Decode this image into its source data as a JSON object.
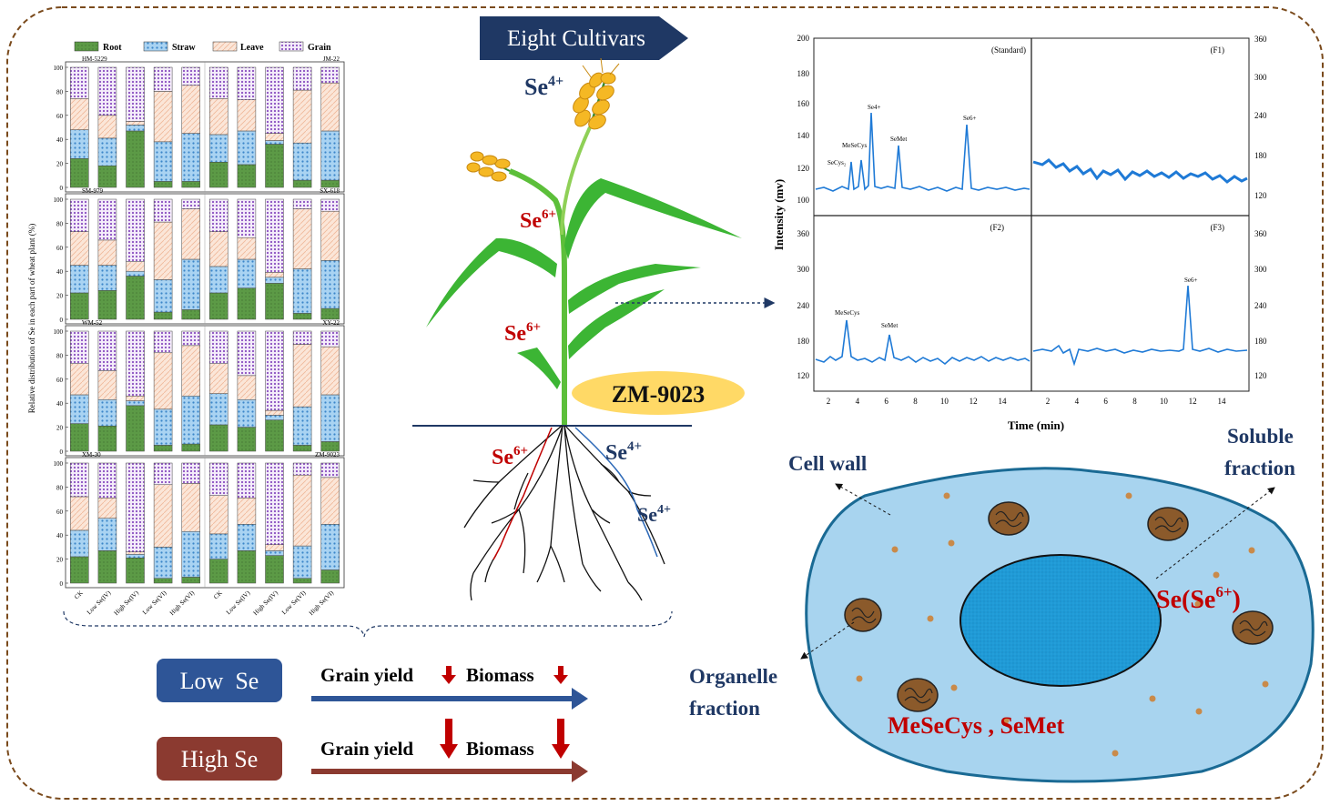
{
  "header_tag": "Eight Cultivars",
  "stacked_legend": [
    "Root",
    "Straw",
    "Leave",
    "Grain"
  ],
  "stacked_ylabel": "Relative distribution of Se in each part of wheat plant (%)",
  "stacked_yticks": [
    "0",
    "20",
    "40",
    "60",
    "80",
    "100"
  ],
  "stacked_xticks": [
    "CK",
    "Low Se(IV)",
    "High Se(IV)",
    "Low Se(VI)",
    "High Se(VI)",
    "CK",
    "Low Se(IV)",
    "High Se(IV)",
    "Low Se(VI)",
    "High Se(VI)"
  ],
  "plant": {
    "se4_top": "Se",
    "se4_top_sup": "4+",
    "se6_mid": "Se",
    "se6_mid_sup": "6+",
    "se6_low": "Se",
    "se6_low_sup": "6+",
    "se6_root": "Se",
    "se6_root_sup": "6+",
    "se4_root1": "Se",
    "se4_root1_sup": "4+",
    "se4_root2": "Se",
    "se4_root2_sup": "4+",
    "cultivar_label": "ZM-9023"
  },
  "hplc": {
    "ylabel": "Intensity (mv)",
    "xlabel": "Time (min)",
    "left_top_ticks": [
      "100",
      "120",
      "140",
      "160",
      "180",
      "200"
    ],
    "right_top_ticks": [
      "120",
      "180",
      "240",
      "300",
      "360"
    ],
    "bottom_ticks": [
      "120",
      "180",
      "240",
      "300",
      "360"
    ],
    "xticks": [
      "2",
      "4",
      "6",
      "8",
      "10",
      "12",
      "14"
    ],
    "panels": [
      "(Standard)",
      "(F1)",
      "(F2)",
      "(F3)"
    ],
    "peaks_standard": [
      "SeCys₂",
      "MeSeCys",
      "Se4+",
      "SeMet",
      "Se6+"
    ],
    "peaks_f2": [
      "MeSeCys",
      "SeMet"
    ],
    "peaks_f3": [
      "Se6+"
    ]
  },
  "cell": {
    "cell_wall": "Cell wall",
    "soluble1": "Soluble",
    "soluble2": "fraction",
    "organelle1": "Organelle",
    "organelle2": "fraction",
    "soluble_species": "Se(Se",
    "soluble_species_sup": "6+",
    "soluble_species_end": ")",
    "organelle_species": "MeSeCys , SeMet"
  },
  "effects": {
    "low_label": "Low  Se",
    "high_label": "High Se",
    "grain_yield": "Grain yield",
    "biomass": "Biomass"
  },
  "colors": {
    "root": "#4e8a3c",
    "straw": "#4d9ad6",
    "leave": "#f4cfb7",
    "grain": "#9b63c4",
    "navy": "#1f3864",
    "red": "#c00000",
    "low_se": "#2e5597",
    "high_se": "#8b3a30",
    "cell_fill": "#a8d4ef",
    "nucleus": "#1f9ad6",
    "hplc_line": "#1f7ad6"
  },
  "chart_data": {
    "type": "bar",
    "stacked": true,
    "ylabel": "Relative distribution of Se in each part of wheat plant (%)",
    "ylim": [
      0,
      100
    ],
    "categories": [
      "CK",
      "Low Se(IV)",
      "High Se(IV)",
      "Low Se(VI)",
      "High Se(VI)"
    ],
    "legend": [
      "Root",
      "Straw",
      "Leave",
      "Grain"
    ],
    "panels": [
      {
        "left": "HM-5229",
        "right": "JM-22",
        "left_bars": [
          [
            24,
            24,
            26,
            26
          ],
          [
            18,
            23,
            19,
            40
          ],
          [
            47,
            5,
            3,
            45
          ],
          [
            5,
            33,
            42,
            20
          ],
          [
            5,
            40,
            40,
            15
          ]
        ],
        "right_bars": [
          [
            21,
            23,
            30,
            26
          ],
          [
            19,
            28,
            26,
            27
          ],
          [
            36,
            3,
            6,
            55
          ],
          [
            6,
            31,
            44,
            19
          ],
          [
            6,
            41,
            40,
            13
          ]
        ]
      },
      {
        "left": "SM-979",
        "right": "SX-618",
        "left_bars": [
          [
            22,
            23,
            28,
            27
          ],
          [
            24,
            21,
            21,
            34
          ],
          [
            36,
            4,
            8,
            52
          ],
          [
            6,
            27,
            48,
            19
          ],
          [
            8,
            42,
            42,
            8
          ]
        ],
        "right_bars": [
          [
            22,
            22,
            29,
            27
          ],
          [
            26,
            24,
            18,
            32
          ],
          [
            30,
            5,
            4,
            61
          ],
          [
            5,
            37,
            50,
            8
          ],
          [
            9,
            40,
            41,
            10
          ]
        ]
      },
      {
        "left": "WM-52",
        "right": "XY-22",
        "left_bars": [
          [
            23,
            24,
            26,
            27
          ],
          [
            21,
            22,
            24,
            33
          ],
          [
            38,
            4,
            4,
            54
          ],
          [
            5,
            30,
            47,
            18
          ],
          [
            6,
            40,
            42,
            12
          ]
        ],
        "right_bars": [
          [
            22,
            26,
            25,
            27
          ],
          [
            20,
            23,
            20,
            37
          ],
          [
            26,
            4,
            4,
            66
          ],
          [
            5,
            32,
            52,
            11
          ],
          [
            8,
            39,
            40,
            13
          ]
        ]
      },
      {
        "left": "XM-30",
        "right": "ZM-9023",
        "left_bars": [
          [
            22,
            22,
            28,
            28
          ],
          [
            27,
            27,
            17,
            29
          ],
          [
            21,
            3,
            2,
            74
          ],
          [
            4,
            26,
            52,
            18
          ],
          [
            5,
            38,
            40,
            17
          ]
        ],
        "right_bars": [
          [
            20,
            21,
            32,
            27
          ],
          [
            27,
            22,
            22,
            29
          ],
          [
            23,
            4,
            5,
            68
          ],
          [
            4,
            27,
            59,
            10
          ],
          [
            11,
            38,
            39,
            12
          ]
        ]
      }
    ]
  }
}
